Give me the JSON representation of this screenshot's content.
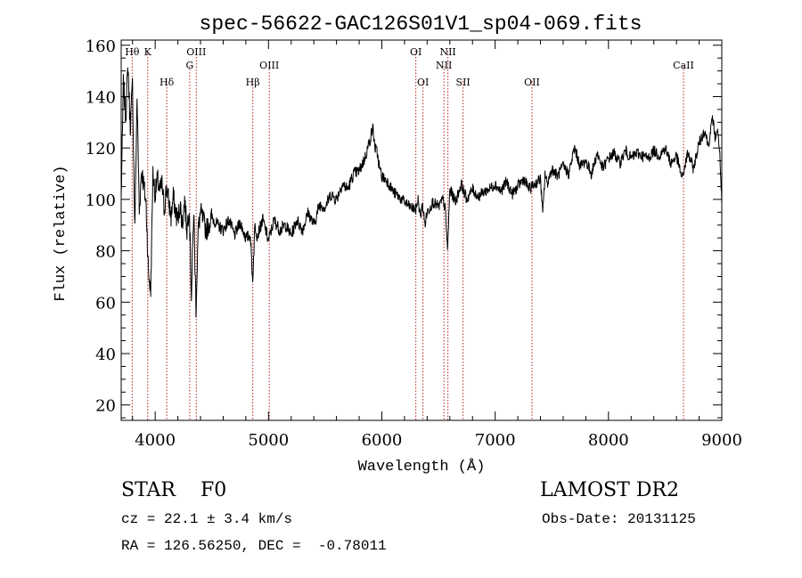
{
  "chart_data": {
    "type": "line",
    "title": "spec-56622-GAC126S01V1_sp04-069.fits",
    "xlabel": "Wavelength (Å)",
    "ylabel": "Flux (relative)",
    "xlim": [
      3700,
      9000
    ],
    "ylim": [
      14,
      162
    ],
    "x_ticks": [
      4000,
      5000,
      6000,
      7000,
      8000,
      9000
    ],
    "y_ticks": [
      20,
      40,
      60,
      80,
      100,
      120,
      140,
      160
    ],
    "x_minor_step": 200,
    "y_minor_step": 5,
    "grid": false,
    "line_color": "#000000",
    "marker_color": "#b22222",
    "lines": [
      {
        "label": "Hθ",
        "wavelength": 3797,
        "row": 0
      },
      {
        "label": "K",
        "wavelength": 3934,
        "row": 0
      },
      {
        "label": "Hδ",
        "wavelength": 4102,
        "row": 2
      },
      {
        "label": "G",
        "wavelength": 4305,
        "row": 1
      },
      {
        "label": "OIII",
        "wavelength": 4363,
        "row": 0
      },
      {
        "label": "Hβ",
        "wavelength": 4861,
        "row": 2
      },
      {
        "label": "OIII",
        "wavelength": 5007,
        "row": 1
      },
      {
        "label": "OI",
        "wavelength": 6300,
        "row": 0
      },
      {
        "label": "OI",
        "wavelength": 6363,
        "row": 2
      },
      {
        "label": "NII",
        "wavelength": 6548,
        "row": 1
      },
      {
        "label": "NII",
        "wavelength": 6583,
        "row": 0
      },
      {
        "label": "SII",
        "wavelength": 6717,
        "row": 2
      },
      {
        "label": "OII",
        "wavelength": 7325,
        "row": 2
      },
      {
        "label": "CaII",
        "wavelength": 8662,
        "row": 1
      }
    ],
    "series": [
      {
        "x": [
          3700,
          3720,
          3740,
          3760,
          3780,
          3800,
          3820,
          3840,
          3860,
          3880,
          3900,
          3920,
          3940,
          3960,
          3980,
          4000,
          4020,
          4040,
          4060,
          4080,
          4100,
          4120,
          4140,
          4160,
          4180,
          4200,
          4220,
          4240,
          4260,
          4280,
          4300,
          4320,
          4340,
          4360,
          4380,
          4400,
          4450,
          4500,
          4550,
          4600,
          4650,
          4700,
          4750,
          4800,
          4840,
          4860,
          4880,
          4900,
          4950,
          5000,
          5050,
          5100,
          5150,
          5200,
          5250,
          5300,
          5350,
          5400,
          5450,
          5500,
          5550,
          5600,
          5650,
          5700,
          5750,
          5800,
          5850,
          5900,
          5920,
          5940,
          5960,
          5980,
          6000,
          6050,
          6100,
          6150,
          6200,
          6250,
          6300,
          6320,
          6340,
          6360,
          6380,
          6400,
          6450,
          6500,
          6540,
          6560,
          6580,
          6600,
          6650,
          6700,
          6750,
          6800,
          6850,
          6900,
          6950,
          7000,
          7050,
          7100,
          7150,
          7200,
          7250,
          7300,
          7350,
          7400,
          7420,
          7440,
          7460,
          7500,
          7550,
          7600,
          7650,
          7700,
          7750,
          7800,
          7850,
          7900,
          7950,
          8000,
          8050,
          8100,
          8150,
          8200,
          8250,
          8300,
          8350,
          8400,
          8450,
          8500,
          8550,
          8600,
          8650,
          8700,
          8750,
          8800,
          8850,
          8880,
          8900,
          8920,
          8940,
          8960,
          8980,
          9000
        ],
        "y": [
          101,
          145,
          132,
          152,
          128,
          145,
          88,
          140,
          95,
          112,
          105,
          98,
          72,
          64,
          110,
          102,
          108,
          103,
          106,
          96,
          105,
          99,
          93,
          101,
          95,
          92,
          98,
          90,
          100,
          88,
          98,
          62,
          96,
          58,
          88,
          95,
          88,
          93,
          90,
          88,
          92,
          86,
          91,
          85,
          86,
          68,
          90,
          86,
          92,
          84,
          92,
          88,
          90,
          86,
          92,
          88,
          95,
          90,
          98,
          97,
          102,
          100,
          106,
          104,
          110,
          111,
          116,
          124,
          128,
          120,
          118,
          112,
          109,
          107,
          103,
          101,
          99,
          97,
          96,
          100,
          93,
          98,
          90,
          95,
          99,
          97,
          100,
          96,
          80,
          104,
          99,
          106,
          100,
          104,
          101,
          103,
          104,
          106,
          103,
          107,
          102,
          105,
          108,
          104,
          106,
          108,
          94,
          110,
          106,
          112,
          109,
          113,
          110,
          120,
          113,
          115,
          110,
          118,
          112,
          116,
          118,
          114,
          119,
          116,
          118,
          117,
          116,
          119,
          117,
          120,
          114,
          117,
          108,
          118,
          112,
          122,
          127,
          121,
          126,
          132,
          124,
          127,
          120,
          98
        ]
      }
    ]
  },
  "info": {
    "class_line": "STAR    F0",
    "survey": "LAMOST DR2",
    "cz_line": "cz = 22.1 ± 3.4 km/s",
    "obs_date": "Obs-Date: 20131125",
    "coords": "RA = 126.56250, DEC =  -0.78011"
  }
}
